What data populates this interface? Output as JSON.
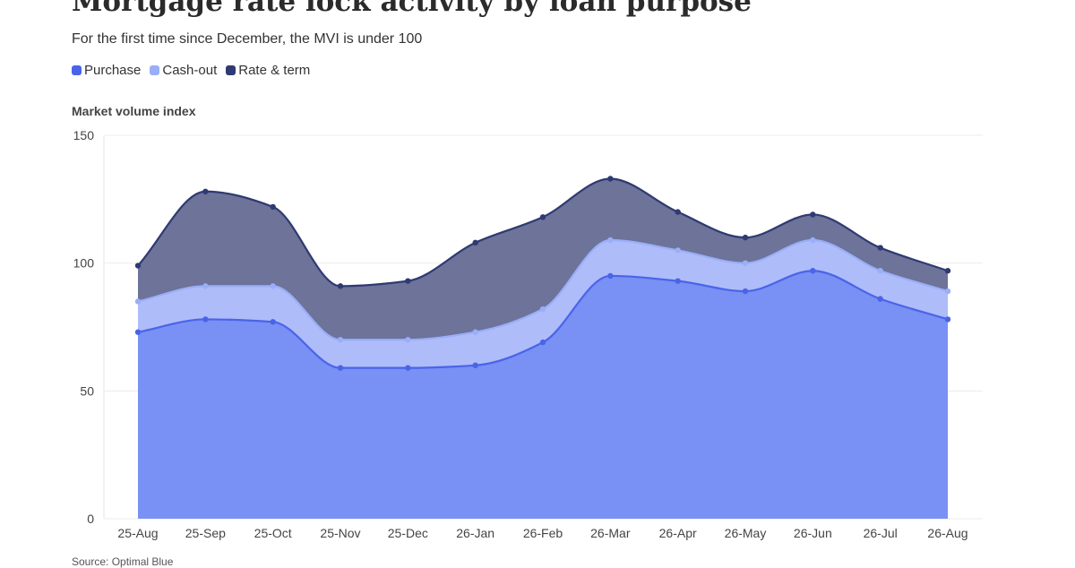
{
  "header": {
    "title": "Mortgage rate lock activity by loan purpose",
    "subtitle": "For the first time since December, the MVI is under 100"
  },
  "footer": {
    "source": "Source: Optimal Blue"
  },
  "chart_data": {
    "type": "area",
    "stacked": true,
    "title": "Mortgage rate lock activity by loan purpose",
    "subtitle": "For the first time since December, the MVI is under 100",
    "ylabel": "Market volume index",
    "xlabel": "",
    "ylim": [
      0,
      150
    ],
    "yticks": [
      0,
      50,
      100,
      150
    ],
    "grid": true,
    "legend_position": "top-left",
    "categories": [
      "25-Aug",
      "25-Sep",
      "25-Oct",
      "25-Nov",
      "25-Dec",
      "26-Jan",
      "26-Feb",
      "26-Mar",
      "26-Apr",
      "26-May",
      "26-Jun",
      "26-Jul",
      "26-Aug"
    ],
    "series": [
      {
        "name": "Purchase",
        "color": "#7990f4",
        "line_color": "#4a64e8",
        "values": [
          73,
          78,
          77,
          59,
          59,
          60,
          69,
          95,
          93,
          89,
          97,
          86,
          78
        ]
      },
      {
        "name": "Cash-out",
        "color": "#aebcfa",
        "line_color": "#9aaef8",
        "values": [
          12,
          13,
          14,
          11,
          11,
          13,
          13,
          14,
          12,
          11,
          12,
          11,
          11
        ]
      },
      {
        "name": "Rate & term",
        "color": "#6d7399",
        "line_color": "#2f3a72",
        "values": [
          14,
          37,
          31,
          21,
          23,
          35,
          36,
          24,
          15,
          10,
          10,
          9,
          8
        ]
      }
    ]
  }
}
